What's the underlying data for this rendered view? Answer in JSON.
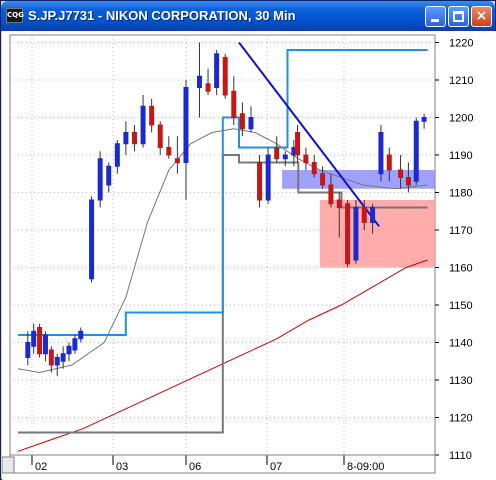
{
  "window": {
    "title": "S.JP.J7731 - NIKON CORPORATION, 30 Min",
    "icon_text": "CQG",
    "buttons": {
      "minimize": "minimize-icon",
      "maximize": "maximize-icon",
      "close": "×"
    }
  },
  "chart_data": {
    "type": "candlestick",
    "title": "S.JP.J7731 - NIKON CORPORATION, 30 Min",
    "ylim": [
      1110,
      1222
    ],
    "y_ticks": [
      "1220",
      "1210",
      "1200",
      "1190",
      "1180",
      "1170",
      "1160",
      "1150",
      "1140",
      "1130",
      "1120",
      "1110"
    ],
    "x_ticks": [
      "02",
      "03",
      "06",
      "07",
      "8-09:00"
    ],
    "colors": {
      "up": "#1a2ad0",
      "down": "#c41818",
      "ma": "#cc0000",
      "channel": "#2090e0",
      "stop": "#777777",
      "trend": "#1010d0",
      "buy_zone": "#8080ff",
      "sell_zone": "#ff9090"
    },
    "candles": [
      {
        "o": 1136,
        "h": 1143,
        "l": 1134,
        "c": 1140
      },
      {
        "o": 1139,
        "h": 1145,
        "l": 1137,
        "c": 1143
      },
      {
        "o": 1144,
        "h": 1145,
        "l": 1136,
        "c": 1137
      },
      {
        "o": 1137,
        "h": 1143,
        "l": 1135,
        "c": 1142
      },
      {
        "o": 1138,
        "h": 1139,
        "l": 1132,
        "c": 1134
      },
      {
        "o": 1134,
        "h": 1137,
        "l": 1131,
        "c": 1136
      },
      {
        "o": 1135,
        "h": 1139,
        "l": 1133,
        "c": 1137
      },
      {
        "o": 1137,
        "h": 1140,
        "l": 1135,
        "c": 1139
      },
      {
        "o": 1138,
        "h": 1142,
        "l": 1137,
        "c": 1141
      },
      {
        "o": 1141,
        "h": 1144,
        "l": 1140,
        "c": 1143
      },
      {
        "o": 1157,
        "h": 1179,
        "l": 1156,
        "c": 1178
      },
      {
        "o": 1178,
        "h": 1191,
        "l": 1176,
        "c": 1189
      },
      {
        "o": 1182,
        "h": 1188,
        "l": 1180,
        "c": 1187
      },
      {
        "o": 1187,
        "h": 1194,
        "l": 1185,
        "c": 1193
      },
      {
        "o": 1193,
        "h": 1199,
        "l": 1190,
        "c": 1196
      },
      {
        "o": 1196,
        "h": 1198,
        "l": 1191,
        "c": 1193
      },
      {
        "o": 1193,
        "h": 1206,
        "l": 1192,
        "c": 1203
      },
      {
        "o": 1203,
        "h": 1205,
        "l": 1196,
        "c": 1198
      },
      {
        "o": 1198,
        "h": 1199,
        "l": 1190,
        "c": 1192
      },
      {
        "o": 1192,
        "h": 1195,
        "l": 1189,
        "c": 1190
      },
      {
        "o": 1189,
        "h": 1195,
        "l": 1185,
        "c": 1188
      },
      {
        "o": 1188,
        "h": 1210,
        "l": 1178,
        "c": 1208
      },
      {
        "o": 1208,
        "h": 1220,
        "l": 1200,
        "c": 1211
      },
      {
        "o": 1209,
        "h": 1213,
        "l": 1206,
        "c": 1207
      },
      {
        "o": 1208,
        "h": 1218,
        "l": 1206,
        "c": 1217
      },
      {
        "o": 1216,
        "h": 1217,
        "l": 1205,
        "c": 1206
      },
      {
        "o": 1207,
        "h": 1211,
        "l": 1198,
        "c": 1200
      },
      {
        "o": 1201,
        "h": 1204,
        "l": 1195,
        "c": 1197
      },
      {
        "o": 1197,
        "h": 1203,
        "l": 1196,
        "c": 1200
      },
      {
        "o": 1188,
        "h": 1190,
        "l": 1176,
        "c": 1178
      },
      {
        "o": 1178,
        "h": 1192,
        "l": 1177,
        "c": 1190
      },
      {
        "o": 1192,
        "h": 1195,
        "l": 1188,
        "c": 1189
      },
      {
        "o": 1189,
        "h": 1191,
        "l": 1187,
        "c": 1190
      },
      {
        "o": 1190,
        "h": 1194,
        "l": 1187,
        "c": 1192
      },
      {
        "o": 1196,
        "h": 1198,
        "l": 1188,
        "c": 1190
      },
      {
        "o": 1190,
        "h": 1192,
        "l": 1186,
        "c": 1188
      },
      {
        "o": 1188,
        "h": 1190,
        "l": 1184,
        "c": 1185
      },
      {
        "o": 1185,
        "h": 1187,
        "l": 1181,
        "c": 1182
      },
      {
        "o": 1182,
        "h": 1185,
        "l": 1176,
        "c": 1177
      },
      {
        "o": 1178,
        "h": 1180,
        "l": 1168,
        "c": 1176
      },
      {
        "o": 1177,
        "h": 1178,
        "l": 1160,
        "c": 1161
      },
      {
        "o": 1162,
        "h": 1178,
        "l": 1161,
        "c": 1176
      },
      {
        "o": 1176,
        "h": 1178,
        "l": 1170,
        "c": 1172
      },
      {
        "o": 1172,
        "h": 1177,
        "l": 1169,
        "c": 1176
      },
      {
        "o": 1185,
        "h": 1198,
        "l": 1183,
        "c": 1196
      },
      {
        "o": 1190,
        "h": 1192,
        "l": 1183,
        "c": 1186
      },
      {
        "o": 1186,
        "h": 1190,
        "l": 1181,
        "c": 1184
      },
      {
        "o": 1184,
        "h": 1188,
        "l": 1180,
        "c": 1182
      },
      {
        "o": 1183,
        "h": 1200,
        "l": 1182,
        "c": 1199
      },
      {
        "o": 1199,
        "h": 1201,
        "l": 1197,
        "c": 1200
      }
    ],
    "channel_line": [
      [
        0,
        1142
      ],
      [
        14,
        1142
      ],
      [
        20,
        1148
      ],
      [
        28,
        1148
      ],
      [
        36,
        1148
      ],
      [
        38,
        1200
      ],
      [
        40,
        1200
      ],
      [
        41,
        1192
      ],
      [
        44,
        1192
      ],
      [
        50,
        1218
      ],
      [
        55,
        1218
      ],
      [
        66,
        1218
      ],
      [
        76,
        1218
      ]
    ],
    "stop_line": [
      [
        0,
        1116
      ],
      [
        38,
        1116
      ],
      [
        38,
        1190
      ],
      [
        41,
        1188
      ],
      [
        52,
        1188
      ],
      [
        52,
        1180
      ],
      [
        60,
        1180
      ],
      [
        60,
        1176
      ],
      [
        76,
        1176
      ]
    ],
    "moving_avg": [
      [
        0,
        1133
      ],
      [
        4,
        1132
      ],
      [
        10,
        1134
      ],
      [
        16,
        1140
      ],
      [
        20,
        1152
      ],
      [
        24,
        1172
      ],
      [
        28,
        1186
      ],
      [
        32,
        1193
      ],
      [
        36,
        1196
      ],
      [
        40,
        1197
      ],
      [
        44,
        1196
      ],
      [
        48,
        1193
      ],
      [
        52,
        1189
      ],
      [
        56,
        1186
      ],
      [
        60,
        1184
      ],
      [
        64,
        1182
      ],
      [
        70,
        1181
      ],
      [
        76,
        1182
      ]
    ],
    "ma_red": [
      [
        0,
        1111
      ],
      [
        6,
        1114
      ],
      [
        12,
        1117
      ],
      [
        18,
        1121
      ],
      [
        24,
        1125
      ],
      [
        30,
        1129
      ],
      [
        36,
        1133
      ],
      [
        42,
        1137
      ],
      [
        48,
        1141
      ],
      [
        54,
        1146
      ],
      [
        60,
        1150
      ],
      [
        66,
        1155
      ],
      [
        72,
        1160
      ],
      [
        76,
        1162
      ]
    ],
    "trendline": [
      [
        41,
        1220
      ],
      [
        67,
        1171
      ]
    ],
    "zones": [
      {
        "x0": 49,
        "x1": 76,
        "y0": 1181,
        "y1": 1186,
        "color": "#8080ff"
      },
      {
        "x0": 56,
        "x1": 76,
        "y0": 1160,
        "y1": 1178,
        "color": "#ff9090"
      }
    ]
  }
}
